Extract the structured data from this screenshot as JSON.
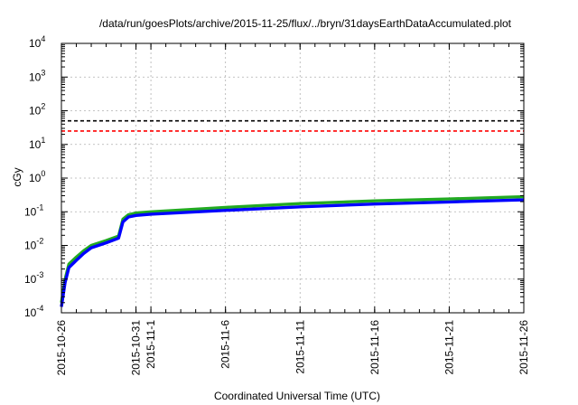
{
  "chart_data": {
    "type": "line",
    "title": "/data/run/goesPlots/archive/2015-11-25/flux/../bryn/31daysEarthDataAccumulated.plot",
    "xlabel": "Coordinated Universal Time (UTC)",
    "ylabel": "cGy",
    "y_scale": "log",
    "ylim": [
      0.0001,
      10000
    ],
    "xlim": [
      "2015-10-26",
      "2015-11-26"
    ],
    "grid": true,
    "x_ticks": [
      {
        "date": "2015-10-26",
        "label": "2015-10-26"
      },
      {
        "date": "2015-10-31",
        "label": "2015-10-31"
      },
      {
        "date": "2015-11-01",
        "label": "2015-11-1"
      },
      {
        "date": "2015-11-06",
        "label": "2015-11-6"
      },
      {
        "date": "2015-11-11",
        "label": "2015-11-11"
      },
      {
        "date": "2015-11-16",
        "label": "2015-11-16"
      },
      {
        "date": "2015-11-21",
        "label": "2015-11-21"
      },
      {
        "date": "2015-11-26",
        "label": "2015-11-26"
      }
    ],
    "y_ticks": [
      {
        "value": 0.0001,
        "base": "10",
        "exp": "-4"
      },
      {
        "value": 0.001,
        "base": "10",
        "exp": "-3"
      },
      {
        "value": 0.01,
        "base": "10",
        "exp": "-2"
      },
      {
        "value": 0.1,
        "base": "10",
        "exp": "-1"
      },
      {
        "value": 1,
        "base": "10",
        "exp": "0"
      },
      {
        "value": 10,
        "base": "10",
        "exp": "1"
      },
      {
        "value": 100,
        "base": "10",
        "exp": "2"
      },
      {
        "value": 1000,
        "base": "10",
        "exp": "3"
      },
      {
        "value": 10000,
        "base": "10",
        "exp": "4"
      }
    ],
    "thresholds": [
      {
        "value": 50,
        "color": "#000000"
      },
      {
        "value": 25,
        "color": "#ff0000"
      }
    ],
    "series": [
      {
        "color": "#22aa22",
        "points": [
          [
            "2015-10-26T00:00",
            0.0002
          ],
          [
            "2015-10-26T06:00",
            0.001
          ],
          [
            "2015-10-26T12:00",
            0.0028
          ],
          [
            "2015-10-27T00:00",
            0.0045
          ],
          [
            "2015-10-27T12:00",
            0.007
          ],
          [
            "2015-10-28T00:00",
            0.01
          ],
          [
            "2015-10-29T00:00",
            0.014
          ],
          [
            "2015-10-29T20:00",
            0.019
          ],
          [
            "2015-10-30T03:00",
            0.06
          ],
          [
            "2015-10-30T12:00",
            0.082
          ],
          [
            "2015-10-31T00:00",
            0.092
          ],
          [
            "2015-11-01T00:00",
            0.1
          ],
          [
            "2015-11-06T00:00",
            0.135
          ],
          [
            "2015-11-11T00:00",
            0.175
          ],
          [
            "2015-11-16T00:00",
            0.21
          ],
          [
            "2015-11-21T00:00",
            0.24
          ],
          [
            "2015-11-26T00:00",
            0.28
          ]
        ]
      },
      {
        "color": "#0000ff",
        "points": [
          [
            "2015-10-26T00:00",
            0.00015
          ],
          [
            "2015-10-26T06:00",
            0.0008
          ],
          [
            "2015-10-26T12:00",
            0.0022
          ],
          [
            "2015-10-27T00:00",
            0.0036
          ],
          [
            "2015-10-27T12:00",
            0.0058
          ],
          [
            "2015-10-28T00:00",
            0.0085
          ],
          [
            "2015-10-29T00:00",
            0.012
          ],
          [
            "2015-10-29T20:00",
            0.0165
          ],
          [
            "2015-10-30T03:00",
            0.05
          ],
          [
            "2015-10-30T12:00",
            0.07
          ],
          [
            "2015-10-31T00:00",
            0.078
          ],
          [
            "2015-11-01T00:00",
            0.085
          ],
          [
            "2015-11-06T00:00",
            0.11
          ],
          [
            "2015-11-11T00:00",
            0.14
          ],
          [
            "2015-11-16T00:00",
            0.17
          ],
          [
            "2015-11-21T00:00",
            0.195
          ],
          [
            "2015-11-26T00:00",
            0.225
          ]
        ]
      }
    ]
  }
}
